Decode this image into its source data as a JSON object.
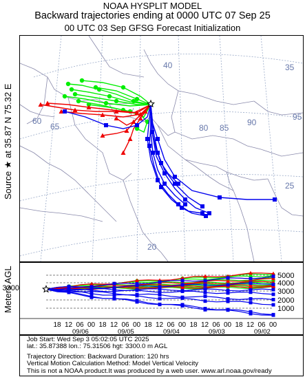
{
  "header": {
    "title": "NOAA HYSPLIT MODEL",
    "subtitle": "Backward trajectories ending at 0000 UTC 07 Sep 25",
    "init_line": "00 UTC 03 Sep    GFSG  Forecast Initialization"
  },
  "source_label": "Source ★ at    35.87 N   75.32 E",
  "map": {
    "lat_labels": [
      "40",
      "35",
      "25",
      "20"
    ],
    "lon_labels": [
      "60",
      "65",
      "80",
      "85",
      "90",
      "95"
    ],
    "source": {
      "lat": 35.87,
      "lon": 75.32
    }
  },
  "profile": {
    "ylabel": "Meters AGL",
    "start_height": "3300",
    "yticks": [
      "5000",
      "4000",
      "3000",
      "2000",
      "1000"
    ],
    "hour_labels": [
      "18",
      "12",
      "06",
      "00",
      "18",
      "12",
      "06",
      "00",
      "18",
      "12",
      "06",
      "00",
      "18",
      "12",
      "06",
      "00",
      "18",
      "12",
      "06",
      "00"
    ],
    "date_labels": [
      "09/06",
      "09/05",
      "09/04",
      "09/03",
      "09/02"
    ]
  },
  "colors": {
    "green": "#00ee00",
    "red": "#ee0000",
    "blue": "#0000ee",
    "grid": "#9aaac8"
  },
  "info": {
    "job_start": "Job Start: Wed Sep  3 05:02:05 UTC 2025",
    "location": "lat.: 35.87388   lon.: 75.31506    hgt: 3300.0 m AGL",
    "direction": "Trajectory Direction: Backward       Duration: 120 hrs",
    "vertical": "Vertical Motion Calculation Method: Model Vertical Velocity",
    "disclaimer": "This is not a NOAA product.It was produced by a web user. www.arl.noaa.gov/ready"
  }
}
